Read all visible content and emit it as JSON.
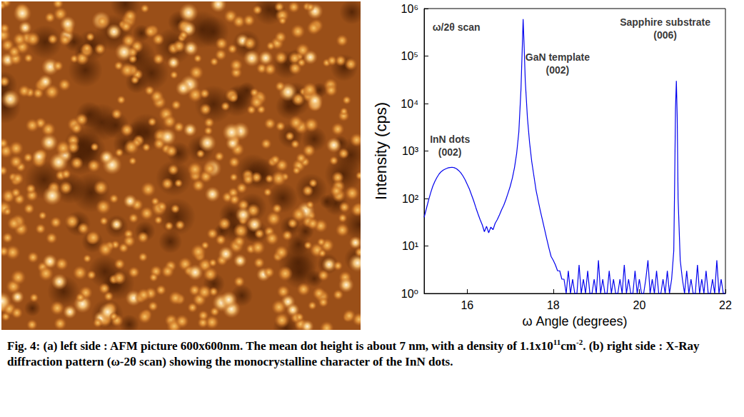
{
  "chart_data": {
    "type": "line",
    "x_label": "ω Angle (degrees)",
    "y_label": "Intensity (cps)",
    "color": "#0000ee",
    "log": "y",
    "grid": false,
    "xlim": [
      15,
      22
    ],
    "xticks": [
      16,
      18,
      20,
      22
    ],
    "ylim": [
      1,
      1000000
    ],
    "yticks": [
      {
        "value": 1,
        "label": "10⁰"
      },
      {
        "value": 10,
        "label": "10¹"
      },
      {
        "value": 100,
        "label": "10²"
      },
      {
        "value": 1000,
        "label": "10³"
      },
      {
        "value": 10000,
        "label": "10⁴"
      },
      {
        "value": 100000,
        "label": "10⁵"
      },
      {
        "value": 1000000,
        "label": "10⁶"
      }
    ],
    "annotations": [
      {
        "text": [
          "ω/2θ scan"
        ],
        "x": 15.75,
        "y": 400000
      },
      {
        "text": [
          "InN dots",
          "(002)"
        ],
        "x": 15.6,
        "y": 1300
      },
      {
        "text": [
          "GaN template",
          "(002)"
        ],
        "x": 18.1,
        "y": 70000
      },
      {
        "text": [
          "Sapphire substrate",
          "(006)"
        ],
        "x": 20.6,
        "y": 380000
      }
    ],
    "x": [
      15.0,
      15.05,
      15.1,
      15.15,
      15.2,
      15.25,
      15.3,
      15.35,
      15.4,
      15.45,
      15.5,
      15.55,
      15.6,
      15.65,
      15.7,
      15.75,
      15.8,
      15.85,
      15.9,
      15.95,
      16.0,
      16.05,
      16.1,
      16.15,
      16.2,
      16.25,
      16.3,
      16.35,
      16.4,
      16.45,
      16.5,
      16.55,
      16.6,
      16.65,
      16.7,
      16.75,
      16.8,
      16.85,
      16.9,
      16.95,
      17.0,
      17.05,
      17.1,
      17.15,
      17.2,
      17.25,
      17.28,
      17.3,
      17.32,
      17.35,
      17.4,
      17.45,
      17.5,
      17.55,
      17.6,
      17.65,
      17.7,
      17.75,
      17.8,
      17.85,
      17.9,
      17.95,
      18.0,
      18.05,
      18.1,
      18.15,
      18.2,
      18.25,
      18.3,
      18.35,
      18.4,
      18.45,
      18.5,
      18.55,
      18.6,
      18.65,
      18.7,
      18.75,
      18.8,
      18.85,
      18.9,
      18.95,
      19.0,
      19.05,
      19.1,
      19.15,
      19.2,
      19.25,
      19.3,
      19.35,
      19.4,
      19.45,
      19.5,
      19.55,
      19.6,
      19.65,
      19.7,
      19.75,
      19.8,
      19.85,
      19.9,
      19.95,
      20.0,
      20.05,
      20.1,
      20.15,
      20.2,
      20.25,
      20.3,
      20.35,
      20.4,
      20.45,
      20.5,
      20.55,
      20.6,
      20.65,
      20.7,
      20.75,
      20.8,
      20.82,
      20.84,
      20.86,
      20.88,
      20.9,
      20.95,
      21.0,
      21.05,
      21.1,
      21.15,
      21.2,
      21.25,
      21.3,
      21.35,
      21.4,
      21.45,
      21.5,
      21.55,
      21.6,
      21.65,
      21.7,
      21.75,
      21.8,
      21.85,
      21.9,
      21.95,
      22.0
    ],
    "values": [
      40,
      60,
      90,
      130,
      180,
      230,
      280,
      330,
      370,
      400,
      420,
      440,
      450,
      455,
      445,
      425,
      390,
      350,
      300,
      250,
      200,
      160,
      120,
      90,
      65,
      48,
      36,
      28,
      20,
      26,
      19,
      25,
      22,
      30,
      36,
      45,
      58,
      72,
      95,
      130,
      180,
      270,
      450,
      900,
      2500,
      20000,
      150000,
      600000,
      200000,
      30000,
      5000,
      1500,
      600,
      300,
      150,
      90,
      55,
      35,
      22,
      14,
      9,
      6,
      5,
      4,
      3,
      3,
      2,
      2,
      1,
      3,
      1,
      2,
      1,
      1,
      4,
      1,
      2,
      1,
      3,
      1,
      1,
      2,
      1,
      5,
      1,
      2,
      1,
      1,
      3,
      1,
      2,
      1,
      1,
      2,
      1,
      4,
      1,
      2,
      1,
      1,
      3,
      1,
      2,
      1,
      1,
      2,
      5,
      1,
      2,
      1,
      3,
      1,
      1,
      2,
      1,
      3,
      1,
      2,
      8,
      200,
      8000,
      30000,
      5000,
      100,
      5,
      2,
      1,
      3,
      1,
      2,
      1,
      1,
      4,
      1,
      2,
      1,
      3,
      1,
      1,
      2,
      1,
      5,
      1,
      2,
      1,
      1
    ]
  },
  "caption": [
    {
      "text": "Fig. 4: (a) left side : AFM picture 600x600nm. The mean dot height is about 7 nm, with a density of 1.1x10"
    },
    {
      "text": "11",
      "sup": true
    },
    {
      "text": "cm"
    },
    {
      "text": "-2",
      "sup": true
    },
    {
      "text": ". (b) right side : X-Ray diffraction pattern (ω-2θ scan) showing the monocrystalline character of the InN dots."
    }
  ]
}
